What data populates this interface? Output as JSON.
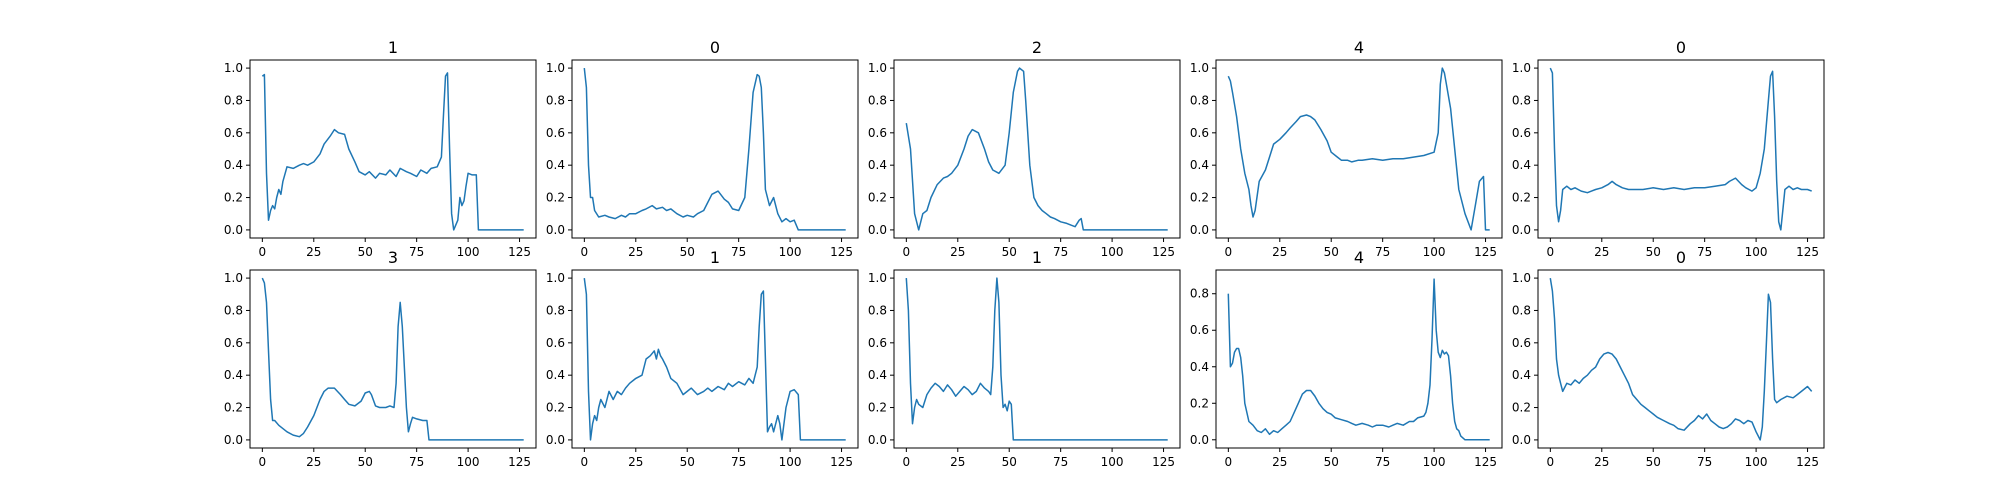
{
  "figure": {
    "line_color": "#1f77b4",
    "background": "#ffffff",
    "grid": false
  },
  "chart_data": [
    {
      "type": "line",
      "title": "1",
      "xlim": [
        -6,
        133
      ],
      "ylim": [
        -0.05,
        1.05
      ],
      "xticks": [
        0,
        25,
        50,
        75,
        100,
        125
      ],
      "yticks": [
        0.0,
        0.2,
        0.4,
        0.6,
        0.8,
        1.0
      ],
      "x": [
        0,
        1,
        2,
        3,
        4,
        5,
        6,
        7,
        8,
        9,
        10,
        12,
        15,
        18,
        20,
        22,
        25,
        28,
        30,
        33,
        35,
        37,
        40,
        42,
        45,
        47,
        50,
        52,
        55,
        57,
        60,
        62,
        65,
        67,
        70,
        72,
        75,
        77,
        80,
        82,
        85,
        87,
        88,
        89,
        90,
        91,
        92,
        93,
        95,
        96,
        97,
        98,
        99,
        100,
        102,
        104,
        105,
        106,
        110,
        115,
        120,
        125,
        127
      ],
      "y": [
        0.95,
        0.96,
        0.35,
        0.06,
        0.12,
        0.15,
        0.13,
        0.2,
        0.25,
        0.22,
        0.3,
        0.39,
        0.38,
        0.4,
        0.41,
        0.4,
        0.42,
        0.47,
        0.53,
        0.58,
        0.62,
        0.6,
        0.59,
        0.5,
        0.42,
        0.36,
        0.34,
        0.36,
        0.32,
        0.35,
        0.34,
        0.37,
        0.33,
        0.38,
        0.36,
        0.35,
        0.33,
        0.37,
        0.35,
        0.38,
        0.39,
        0.45,
        0.7,
        0.95,
        0.97,
        0.5,
        0.1,
        0.0,
        0.06,
        0.2,
        0.15,
        0.18,
        0.27,
        0.35,
        0.34,
        0.34,
        0.0,
        0.0,
        0.0,
        0.0,
        0.0,
        0.0,
        0.0
      ]
    },
    {
      "type": "line",
      "title": "0",
      "xlim": [
        -6,
        133
      ],
      "ylim": [
        -0.05,
        1.05
      ],
      "xticks": [
        0,
        25,
        50,
        75,
        100,
        125
      ],
      "yticks": [
        0.0,
        0.2,
        0.4,
        0.6,
        0.8,
        1.0
      ],
      "x": [
        0,
        1,
        2,
        3,
        4,
        5,
        7,
        10,
        12,
        15,
        18,
        20,
        22,
        25,
        28,
        30,
        33,
        35,
        38,
        40,
        42,
        45,
        48,
        50,
        53,
        55,
        58,
        60,
        62,
        65,
        68,
        70,
        72,
        75,
        78,
        80,
        82,
        84,
        85,
        86,
        87,
        88,
        90,
        92,
        94,
        96,
        98,
        100,
        102,
        104,
        105,
        110,
        115,
        120,
        125,
        127
      ],
      "y": [
        1.0,
        0.88,
        0.4,
        0.2,
        0.2,
        0.12,
        0.08,
        0.09,
        0.08,
        0.07,
        0.09,
        0.08,
        0.1,
        0.1,
        0.12,
        0.13,
        0.15,
        0.13,
        0.14,
        0.12,
        0.13,
        0.1,
        0.08,
        0.09,
        0.08,
        0.1,
        0.12,
        0.17,
        0.22,
        0.24,
        0.19,
        0.17,
        0.13,
        0.12,
        0.2,
        0.5,
        0.85,
        0.96,
        0.95,
        0.88,
        0.6,
        0.25,
        0.15,
        0.2,
        0.1,
        0.05,
        0.07,
        0.05,
        0.06,
        0.0,
        0.0,
        0.0,
        0.0,
        0.0,
        0.0,
        0.0
      ]
    },
    {
      "type": "line",
      "title": "2",
      "xlim": [
        -6,
        133
      ],
      "ylim": [
        -0.05,
        1.05
      ],
      "xticks": [
        0,
        25,
        50,
        75,
        100,
        125
      ],
      "yticks": [
        0.0,
        0.2,
        0.4,
        0.6,
        0.8,
        1.0
      ],
      "x": [
        0,
        2,
        4,
        6,
        8,
        10,
        12,
        15,
        18,
        20,
        22,
        25,
        28,
        30,
        32,
        35,
        38,
        40,
        42,
        45,
        48,
        50,
        52,
        54,
        55,
        57,
        58,
        60,
        62,
        64,
        66,
        68,
        70,
        72,
        75,
        78,
        80,
        82,
        84,
        85,
        86,
        90,
        95,
        100,
        105,
        110,
        115,
        120,
        125,
        127
      ],
      "y": [
        0.66,
        0.5,
        0.1,
        0.0,
        0.1,
        0.12,
        0.2,
        0.28,
        0.32,
        0.33,
        0.35,
        0.4,
        0.5,
        0.58,
        0.62,
        0.6,
        0.5,
        0.42,
        0.37,
        0.35,
        0.4,
        0.6,
        0.85,
        0.98,
        1.0,
        0.98,
        0.8,
        0.4,
        0.2,
        0.15,
        0.12,
        0.1,
        0.08,
        0.07,
        0.05,
        0.04,
        0.03,
        0.02,
        0.06,
        0.07,
        0.0,
        0.0,
        0.0,
        0.0,
        0.0,
        0.0,
        0.0,
        0.0,
        0.0,
        0.0
      ]
    },
    {
      "type": "line",
      "title": "4",
      "xlim": [
        -6,
        133
      ],
      "ylim": [
        -0.05,
        1.05
      ],
      "xticks": [
        0,
        25,
        50,
        75,
        100,
        125
      ],
      "yticks": [
        0.0,
        0.2,
        0.4,
        0.6,
        0.8,
        1.0
      ],
      "x": [
        0,
        1,
        2,
        4,
        6,
        8,
        10,
        11,
        12,
        13,
        15,
        18,
        20,
        22,
        25,
        28,
        30,
        33,
        35,
        38,
        40,
        42,
        45,
        48,
        50,
        53,
        55,
        58,
        60,
        63,
        65,
        70,
        75,
        80,
        85,
        90,
        95,
        100,
        102,
        103,
        104,
        105,
        106,
        108,
        110,
        112,
        115,
        118,
        120,
        122,
        124,
        125,
        126,
        127
      ],
      "y": [
        0.95,
        0.92,
        0.85,
        0.7,
        0.5,
        0.35,
        0.25,
        0.15,
        0.08,
        0.12,
        0.3,
        0.37,
        0.45,
        0.53,
        0.56,
        0.6,
        0.63,
        0.67,
        0.7,
        0.71,
        0.7,
        0.68,
        0.62,
        0.55,
        0.48,
        0.45,
        0.43,
        0.43,
        0.42,
        0.43,
        0.43,
        0.44,
        0.43,
        0.44,
        0.44,
        0.45,
        0.46,
        0.48,
        0.6,
        0.9,
        1.0,
        0.97,
        0.9,
        0.75,
        0.5,
        0.25,
        0.1,
        0.0,
        0.15,
        0.3,
        0.33,
        0.0,
        0.0,
        0.0
      ]
    },
    {
      "type": "line",
      "title": "0",
      "xlim": [
        -6,
        133
      ],
      "ylim": [
        -0.05,
        1.05
      ],
      "xticks": [
        0,
        25,
        50,
        75,
        100,
        125
      ],
      "yticks": [
        0.0,
        0.2,
        0.4,
        0.6,
        0.8,
        1.0
      ],
      "x": [
        0,
        1,
        2,
        3,
        4,
        5,
        6,
        8,
        10,
        12,
        15,
        18,
        20,
        22,
        25,
        28,
        30,
        32,
        35,
        38,
        40,
        45,
        50,
        55,
        60,
        65,
        70,
        75,
        80,
        85,
        87,
        90,
        93,
        95,
        98,
        100,
        102,
        104,
        106,
        107,
        108,
        109,
        110,
        111,
        112,
        113,
        114,
        116,
        118,
        120,
        122,
        125,
        127
      ],
      "y": [
        1.0,
        0.97,
        0.5,
        0.15,
        0.05,
        0.12,
        0.25,
        0.27,
        0.25,
        0.26,
        0.24,
        0.23,
        0.24,
        0.25,
        0.26,
        0.28,
        0.3,
        0.28,
        0.26,
        0.25,
        0.25,
        0.25,
        0.26,
        0.25,
        0.26,
        0.25,
        0.26,
        0.26,
        0.27,
        0.28,
        0.3,
        0.32,
        0.28,
        0.26,
        0.24,
        0.26,
        0.35,
        0.5,
        0.8,
        0.95,
        0.98,
        0.7,
        0.3,
        0.05,
        0.0,
        0.12,
        0.25,
        0.27,
        0.25,
        0.26,
        0.25,
        0.25,
        0.24
      ]
    },
    {
      "type": "line",
      "title": "3",
      "xlim": [
        -6,
        133
      ],
      "ylim": [
        -0.05,
        1.05
      ],
      "xticks": [
        0,
        25,
        50,
        75,
        100,
        125
      ],
      "yticks": [
        0.0,
        0.2,
        0.4,
        0.6,
        0.8,
        1.0
      ],
      "x": [
        0,
        1,
        2,
        3,
        4,
        5,
        6,
        8,
        10,
        12,
        15,
        18,
        20,
        22,
        25,
        28,
        30,
        32,
        35,
        38,
        40,
        42,
        45,
        48,
        50,
        52,
        53,
        55,
        57,
        60,
        62,
        64,
        65,
        66,
        67,
        68,
        70,
        71,
        72,
        73,
        75,
        78,
        80,
        81,
        82,
        85,
        90,
        95,
        100,
        105,
        110,
        115,
        120,
        125,
        127
      ],
      "y": [
        1.0,
        0.97,
        0.85,
        0.55,
        0.25,
        0.12,
        0.12,
        0.09,
        0.07,
        0.05,
        0.03,
        0.02,
        0.04,
        0.08,
        0.15,
        0.25,
        0.3,
        0.32,
        0.32,
        0.28,
        0.25,
        0.22,
        0.21,
        0.24,
        0.29,
        0.3,
        0.28,
        0.21,
        0.2,
        0.2,
        0.21,
        0.2,
        0.35,
        0.7,
        0.85,
        0.7,
        0.2,
        0.05,
        0.1,
        0.14,
        0.13,
        0.12,
        0.12,
        0.0,
        0.0,
        0.0,
        0.0,
        0.0,
        0.0,
        0.0,
        0.0,
        0.0,
        0.0,
        0.0,
        0.0
      ]
    },
    {
      "type": "line",
      "title": "1",
      "xlim": [
        -6,
        133
      ],
      "ylim": [
        -0.05,
        1.05
      ],
      "xticks": [
        0,
        25,
        50,
        75,
        100,
        125
      ],
      "yticks": [
        0.0,
        0.2,
        0.4,
        0.6,
        0.8,
        1.0
      ],
      "x": [
        0,
        1,
        2,
        3,
        4,
        5,
        6,
        7,
        8,
        10,
        12,
        14,
        16,
        18,
        20,
        22,
        25,
        28,
        30,
        32,
        34,
        35,
        36,
        37,
        38,
        40,
        42,
        45,
        48,
        50,
        52,
        55,
        58,
        60,
        62,
        65,
        68,
        70,
        72,
        75,
        78,
        80,
        82,
        84,
        85,
        86,
        87,
        88,
        89,
        90,
        91,
        92,
        94,
        95,
        96,
        98,
        100,
        102,
        104,
        105,
        106,
        110,
        115,
        120,
        125,
        127
      ],
      "y": [
        1.0,
        0.9,
        0.3,
        0.0,
        0.1,
        0.15,
        0.12,
        0.2,
        0.25,
        0.2,
        0.3,
        0.25,
        0.3,
        0.28,
        0.32,
        0.35,
        0.38,
        0.4,
        0.5,
        0.52,
        0.55,
        0.5,
        0.56,
        0.52,
        0.5,
        0.45,
        0.38,
        0.35,
        0.28,
        0.3,
        0.32,
        0.28,
        0.3,
        0.32,
        0.3,
        0.33,
        0.31,
        0.35,
        0.33,
        0.36,
        0.34,
        0.38,
        0.35,
        0.45,
        0.7,
        0.9,
        0.92,
        0.5,
        0.05,
        0.08,
        0.1,
        0.05,
        0.15,
        0.1,
        0.0,
        0.2,
        0.3,
        0.31,
        0.28,
        0.0,
        0.0,
        0.0,
        0.0,
        0.0,
        0.0,
        0.0
      ]
    },
    {
      "type": "line",
      "title": "1",
      "xlim": [
        -6,
        133
      ],
      "ylim": [
        -0.05,
        1.05
      ],
      "xticks": [
        0,
        25,
        50,
        75,
        100,
        125
      ],
      "yticks": [
        0.0,
        0.2,
        0.4,
        0.6,
        0.8,
        1.0
      ],
      "x": [
        0,
        1,
        2,
        3,
        4,
        5,
        6,
        8,
        10,
        12,
        14,
        16,
        18,
        20,
        22,
        24,
        26,
        28,
        30,
        32,
        34,
        36,
        38,
        40,
        41,
        42,
        43,
        44,
        45,
        46,
        47,
        48,
        49,
        50,
        51,
        52,
        53,
        55,
        60,
        70,
        80,
        90,
        100,
        110,
        120,
        125,
        127
      ],
      "y": [
        1.0,
        0.8,
        0.35,
        0.1,
        0.2,
        0.25,
        0.22,
        0.2,
        0.28,
        0.32,
        0.35,
        0.33,
        0.3,
        0.34,
        0.31,
        0.27,
        0.3,
        0.33,
        0.31,
        0.28,
        0.3,
        0.35,
        0.32,
        0.3,
        0.28,
        0.45,
        0.8,
        1.0,
        0.85,
        0.4,
        0.2,
        0.22,
        0.18,
        0.24,
        0.22,
        0.0,
        0.0,
        0.0,
        0.0,
        0.0,
        0.0,
        0.0,
        0.0,
        0.0,
        0.0,
        0.0,
        0.0
      ]
    },
    {
      "type": "line",
      "title": "4",
      "xlim": [
        -6,
        133
      ],
      "ylim": [
        -0.045,
        0.93
      ],
      "xticks": [
        0,
        25,
        50,
        75,
        100,
        125
      ],
      "yticks": [
        0.0,
        0.2,
        0.4,
        0.6,
        0.8
      ],
      "x": [
        0,
        1,
        2,
        3,
        4,
        5,
        6,
        7,
        8,
        10,
        12,
        14,
        16,
        18,
        20,
        22,
        24,
        26,
        28,
        30,
        32,
        34,
        36,
        38,
        40,
        42,
        44,
        46,
        48,
        50,
        52,
        55,
        58,
        60,
        62,
        65,
        68,
        70,
        72,
        75,
        78,
        80,
        82,
        85,
        88,
        90,
        92,
        95,
        96,
        97,
        98,
        99,
        100,
        101,
        102,
        103,
        104,
        105,
        106,
        107,
        108,
        109,
        110,
        111,
        112,
        113,
        115,
        118,
        120,
        122,
        125,
        127
      ],
      "y": [
        0.8,
        0.4,
        0.42,
        0.48,
        0.5,
        0.5,
        0.45,
        0.35,
        0.2,
        0.1,
        0.08,
        0.05,
        0.04,
        0.06,
        0.03,
        0.05,
        0.04,
        0.06,
        0.08,
        0.1,
        0.15,
        0.2,
        0.25,
        0.27,
        0.27,
        0.24,
        0.2,
        0.17,
        0.15,
        0.14,
        0.12,
        0.11,
        0.1,
        0.09,
        0.08,
        0.09,
        0.08,
        0.07,
        0.08,
        0.08,
        0.07,
        0.08,
        0.09,
        0.08,
        0.1,
        0.1,
        0.12,
        0.13,
        0.15,
        0.2,
        0.3,
        0.55,
        0.88,
        0.6,
        0.48,
        0.45,
        0.49,
        0.47,
        0.48,
        0.46,
        0.35,
        0.2,
        0.1,
        0.06,
        0.05,
        0.02,
        0.0,
        0.0,
        0.0,
        0.0,
        0.0,
        0.0
      ]
    },
    {
      "type": "line",
      "title": "0",
      "xlim": [
        -6,
        133
      ],
      "ylim": [
        -0.05,
        1.05
      ],
      "xticks": [
        0,
        25,
        50,
        75,
        100,
        125
      ],
      "yticks": [
        0.0,
        0.2,
        0.4,
        0.6,
        0.8,
        1.0
      ],
      "x": [
        0,
        1,
        2,
        3,
        4,
        5,
        6,
        8,
        10,
        12,
        14,
        16,
        18,
        20,
        22,
        24,
        26,
        28,
        30,
        32,
        34,
        36,
        38,
        40,
        42,
        44,
        46,
        48,
        50,
        52,
        55,
        58,
        60,
        62,
        65,
        68,
        70,
        72,
        74,
        76,
        78,
        80,
        82,
        84,
        86,
        88,
        90,
        92,
        94,
        96,
        98,
        100,
        102,
        103,
        104,
        105,
        106,
        107,
        108,
        109,
        110,
        112,
        115,
        118,
        120,
        122,
        125,
        127
      ],
      "y": [
        1.0,
        0.92,
        0.75,
        0.5,
        0.4,
        0.35,
        0.3,
        0.35,
        0.34,
        0.37,
        0.35,
        0.38,
        0.4,
        0.43,
        0.45,
        0.5,
        0.53,
        0.54,
        0.53,
        0.5,
        0.45,
        0.4,
        0.35,
        0.28,
        0.25,
        0.22,
        0.2,
        0.18,
        0.16,
        0.14,
        0.12,
        0.1,
        0.09,
        0.07,
        0.06,
        0.1,
        0.12,
        0.15,
        0.13,
        0.16,
        0.12,
        0.1,
        0.08,
        0.07,
        0.08,
        0.1,
        0.13,
        0.12,
        0.1,
        0.12,
        0.11,
        0.05,
        0.0,
        0.08,
        0.3,
        0.6,
        0.9,
        0.85,
        0.5,
        0.25,
        0.23,
        0.25,
        0.27,
        0.26,
        0.28,
        0.3,
        0.33,
        0.3
      ]
    }
  ]
}
